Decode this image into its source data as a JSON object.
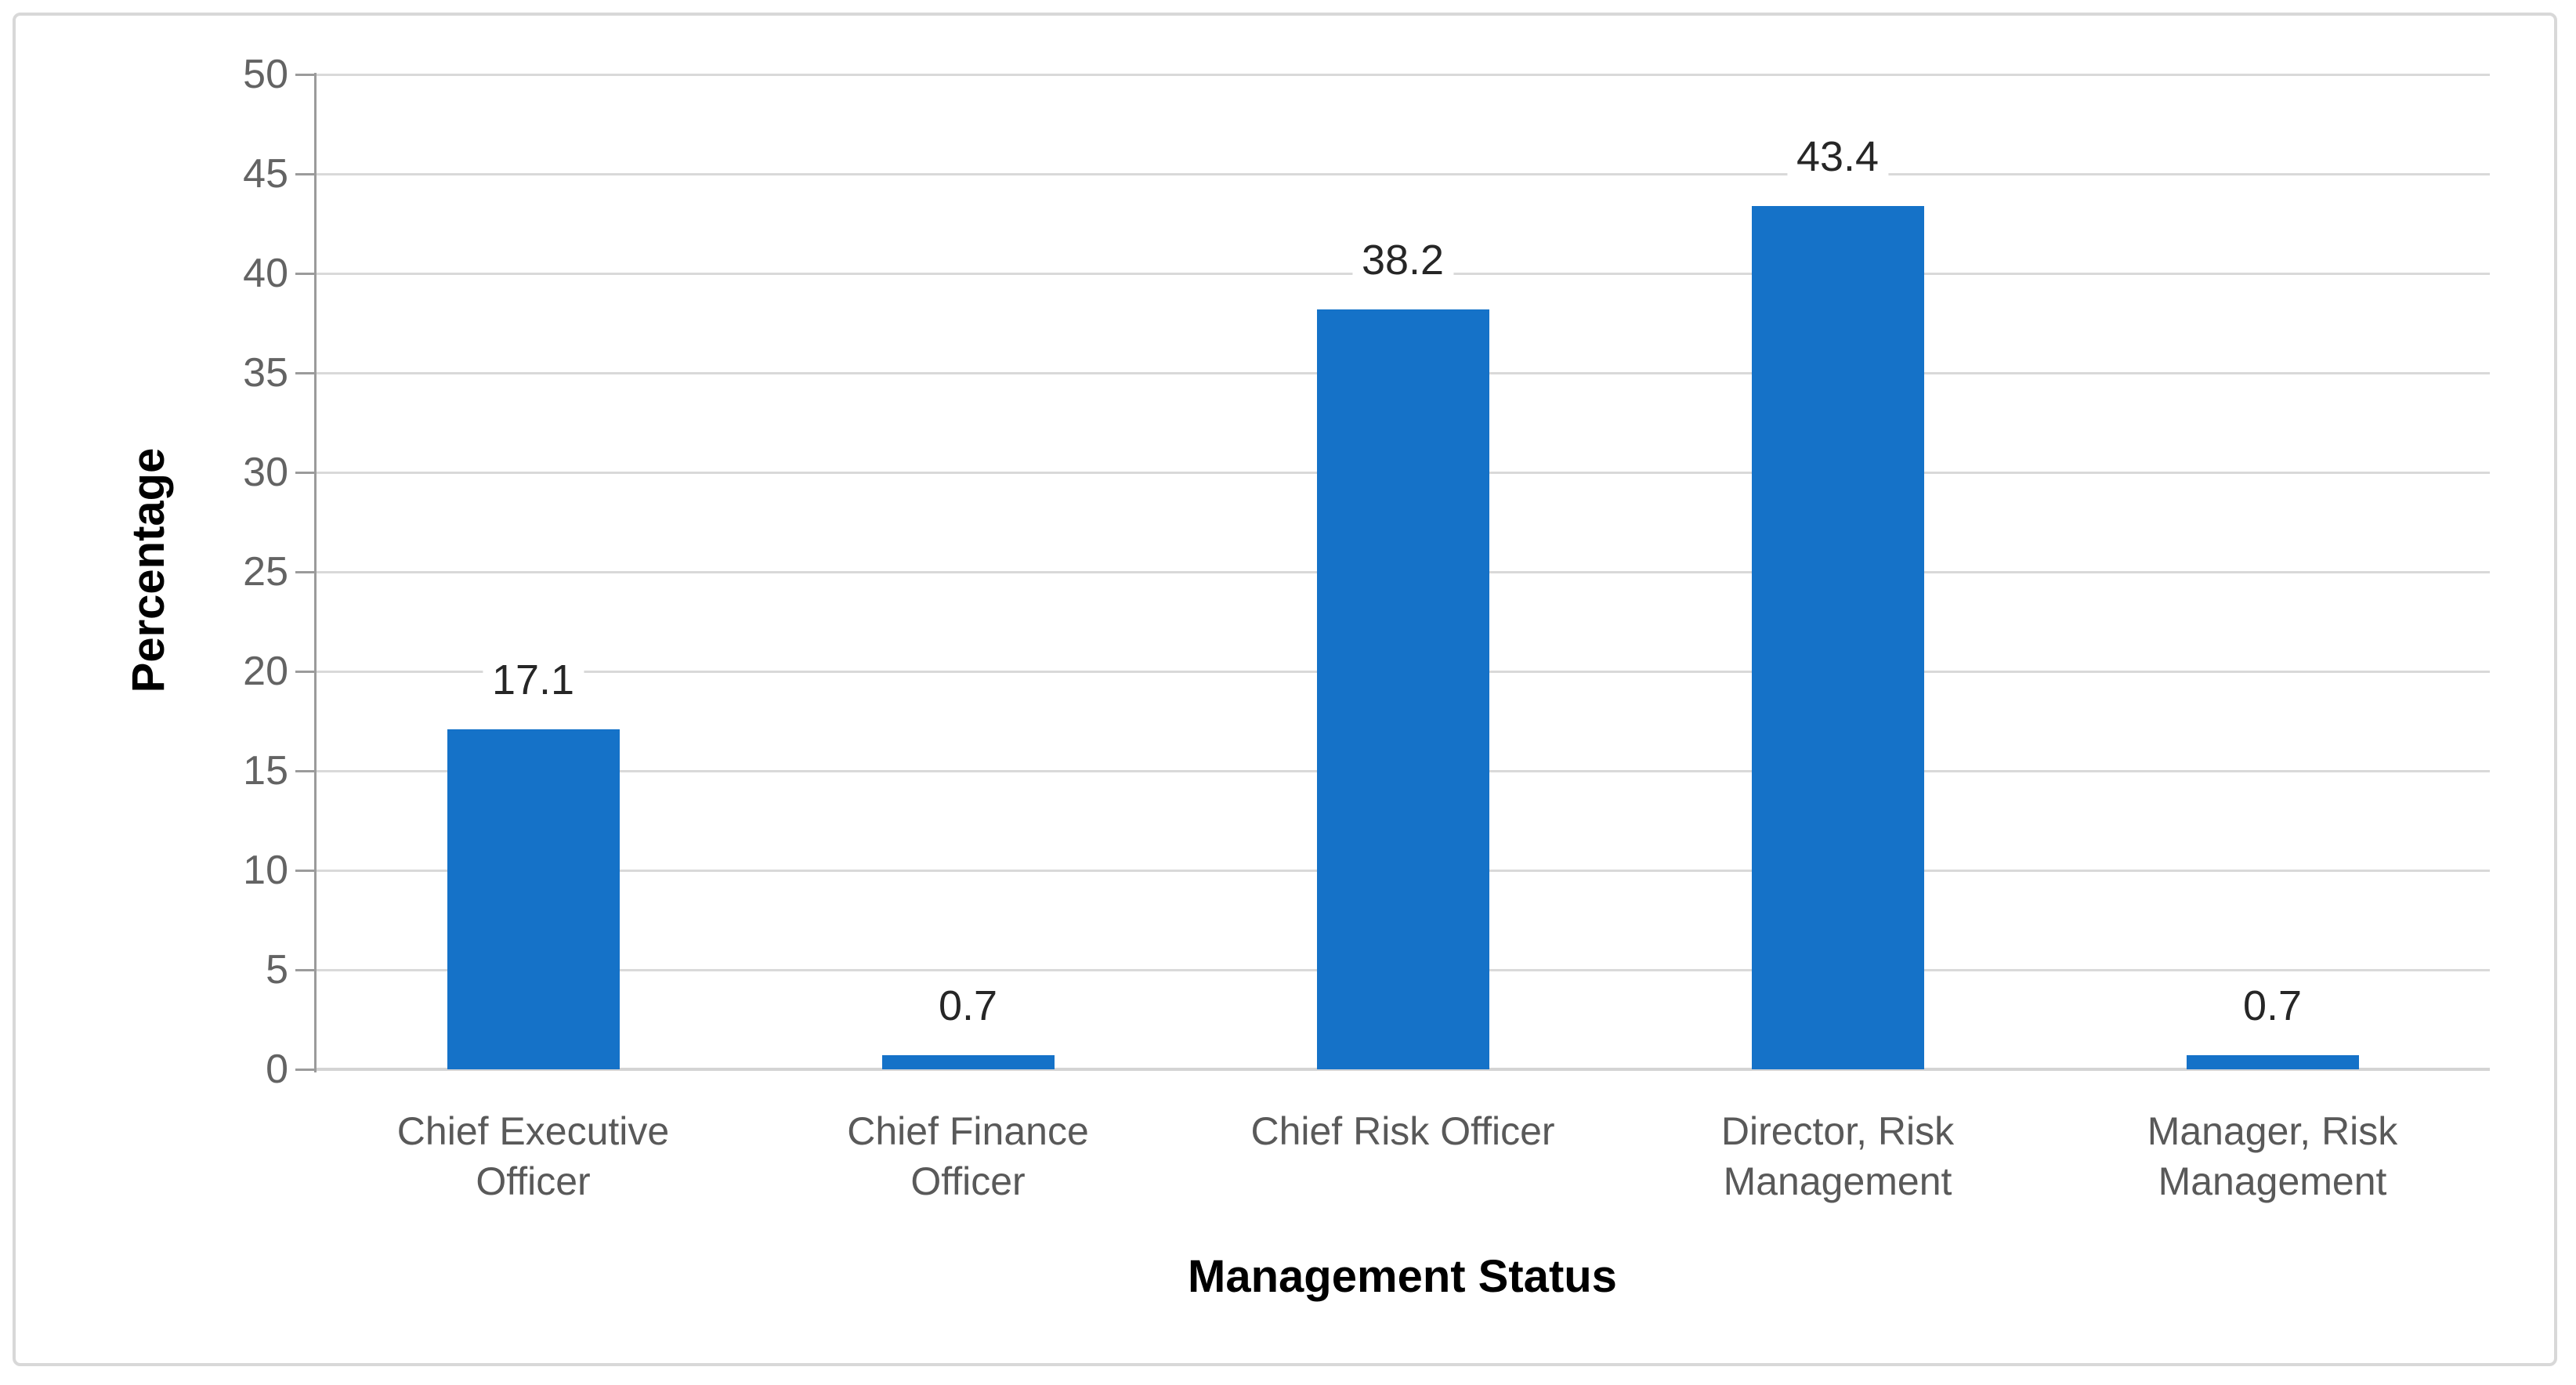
{
  "chart": {
    "y_axis_title": "Percentage",
    "x_axis_title": "Management Status"
  },
  "chart_data": {
    "type": "bar",
    "title": "",
    "xlabel": "Management Status",
    "ylabel": "Percentage",
    "categories": [
      "Chief Executive Officer",
      "Chief Finance Officer",
      "Chief Risk Officer",
      "Director, Risk Management",
      "Manager, Risk Management"
    ],
    "categories_lines": [
      [
        "Chief Executive",
        "Officer"
      ],
      [
        "Chief Finance",
        "Officer"
      ],
      [
        "Chief Risk Officer"
      ],
      [
        "Director, Risk",
        "Management"
      ],
      [
        "Manager, Risk",
        "Management"
      ]
    ],
    "values": [
      17.1,
      0.7,
      38.2,
      43.4,
      0.7
    ],
    "data_labels": [
      "17.1",
      "0.7",
      "38.2",
      "43.4",
      "0.7"
    ],
    "ylim": [
      0,
      50
    ],
    "yticks": [
      0,
      5,
      10,
      15,
      20,
      25,
      30,
      35,
      40,
      45,
      50
    ],
    "grid": true,
    "legend_position": "none"
  },
  "colors": {
    "bar": "#1572C8",
    "gridline": "#D9D9D9",
    "axis_line_vertical": "#9B9B9B",
    "axis_line_bottom": "#D4D4D4",
    "tick_label": "#636363",
    "category_label": "#595959",
    "data_label": "#262626",
    "axis_title": "#000000",
    "frame_border": "#D8D8D8",
    "background": "#FFFFFF",
    "data_label_background": "#FFFFFF"
  }
}
